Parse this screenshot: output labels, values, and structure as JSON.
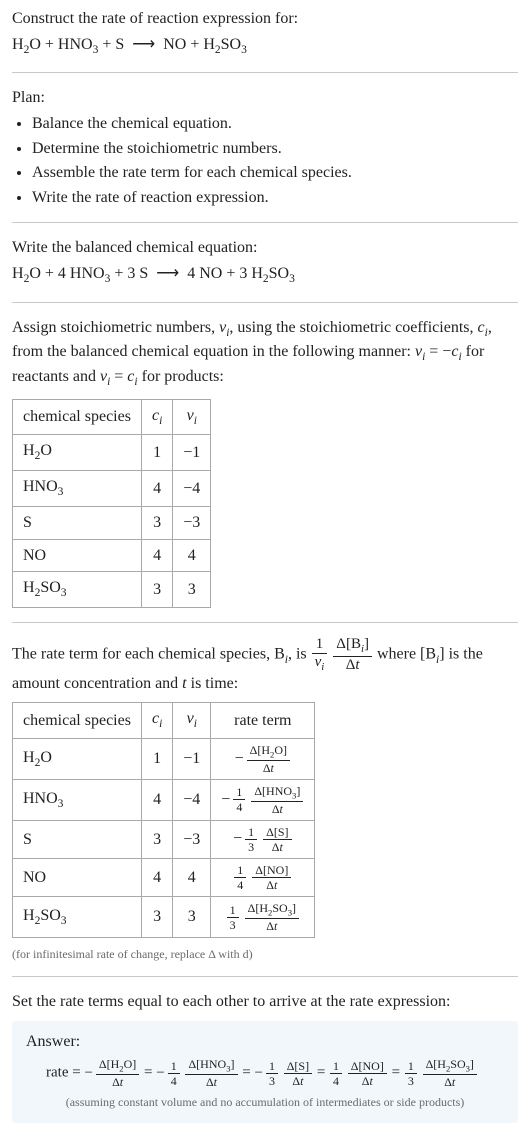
{
  "intro": {
    "prompt": "Construct the rate of reaction expression for:",
    "equation_parts": {
      "lhs1": "H",
      "lhs1_sub": "2",
      "lhs1b": "O + HNO",
      "lhs2_sub": "3",
      "mid": " + S  ",
      "arrow": "⟶",
      "rhs": "  NO + H",
      "rhs_sub": "2",
      "rhs2": "SO",
      "rhs2_sub": "3"
    }
  },
  "plan": {
    "title": "Plan:",
    "items": [
      "Balance the chemical equation.",
      "Determine the stoichiometric numbers.",
      "Assemble the rate term for each chemical species.",
      "Write the rate of reaction expression."
    ]
  },
  "balanced": {
    "title": "Write the balanced chemical equation:",
    "eq": {
      "a": "H",
      "a2": "2",
      "b": "O + 4 HNO",
      "b2": "3",
      "c": " + 3 S  ",
      "arrow": "⟶",
      "d": "  4 NO + 3 H",
      "d2": "2",
      "e": "SO",
      "e2": "3"
    }
  },
  "stoich_text": {
    "line1a": "Assign stoichiometric numbers, ",
    "line1b": ", using the stoichiometric coefficients, ",
    "line1c": ", from the balanced chemical equation in the following manner: ",
    "line1d": " for reactants and ",
    "line1e": " for products:",
    "nu": "ν",
    "nu_i": "i",
    "c": "c",
    "c_i": "i",
    "eq1": " = −",
    "eq2": " = "
  },
  "table1": {
    "headers": {
      "species": "chemical species",
      "c": "c",
      "ci": "i",
      "nu": "ν",
      "nui": "i"
    },
    "rows": [
      {
        "sp_a": "H",
        "sp_sub": "2",
        "sp_b": "O",
        "c": "1",
        "nu": "−1"
      },
      {
        "sp_a": "HNO",
        "sp_sub": "3",
        "sp_b": "",
        "c": "4",
        "nu": "−4"
      },
      {
        "sp_a": "S",
        "sp_sub": "",
        "sp_b": "",
        "c": "3",
        "nu": "−3"
      },
      {
        "sp_a": "NO",
        "sp_sub": "",
        "sp_b": "",
        "c": "4",
        "nu": "4"
      },
      {
        "sp_a": "H",
        "sp_sub": "2",
        "sp_b": "SO",
        "sp_sub2": "3",
        "c": "3",
        "nu": "3"
      }
    ]
  },
  "rateterm_text": {
    "a": "The rate term for each chemical species, B",
    "ai": "i",
    "b": ", is ",
    "where": " where [B",
    "wherei": "i",
    "where2": "] is the amount concentration and ",
    "tvar": "t",
    "where3": " is time:",
    "frac1num": "1",
    "frac1den_nu": "ν",
    "frac1den_i": "i",
    "frac2numA": "Δ[B",
    "frac2numI": "i",
    "frac2numB": "]",
    "frac2den": "Δt"
  },
  "table2": {
    "headers": {
      "species": "chemical species",
      "c": "c",
      "ci": "i",
      "nu": "ν",
      "nui": "i",
      "rate": "rate term"
    },
    "rows": [
      {
        "sp": "H2O",
        "c": "1",
        "nu": "−1",
        "neg": true,
        "coef_num": "",
        "coef_den": "",
        "dnum": "Δ[H2O]",
        "dden": "Δt"
      },
      {
        "sp": "HNO3",
        "c": "4",
        "nu": "−4",
        "neg": true,
        "coef_num": "1",
        "coef_den": "4",
        "dnum": "Δ[HNO3]",
        "dden": "Δt"
      },
      {
        "sp": "S",
        "c": "3",
        "nu": "−3",
        "neg": true,
        "coef_num": "1",
        "coef_den": "3",
        "dnum": "Δ[S]",
        "dden": "Δt"
      },
      {
        "sp": "NO",
        "c": "4",
        "nu": "4",
        "neg": false,
        "coef_num": "1",
        "coef_den": "4",
        "dnum": "Δ[NO]",
        "dden": "Δt"
      },
      {
        "sp": "H2SO3",
        "c": "3",
        "nu": "3",
        "neg": false,
        "coef_num": "1",
        "coef_den": "3",
        "dnum": "Δ[H2SO3]",
        "dden": "Δt"
      }
    ],
    "footnote": "(for infinitesimal rate of change, replace Δ with d)"
  },
  "conclusion": {
    "line": "Set the rate terms equal to each other to arrive at the rate expression:"
  },
  "answer": {
    "label": "Answer:",
    "prefix": "rate = ",
    "terms": [
      {
        "neg": true,
        "cn": "",
        "cd": "",
        "dn": "Δ[H2O]",
        "dd": "Δt"
      },
      {
        "neg": true,
        "cn": "1",
        "cd": "4",
        "dn": "Δ[HNO3]",
        "dd": "Δt"
      },
      {
        "neg": true,
        "cn": "1",
        "cd": "3",
        "dn": "Δ[S]",
        "dd": "Δt"
      },
      {
        "neg": false,
        "cn": "1",
        "cd": "4",
        "dn": "Δ[NO]",
        "dd": "Δt"
      },
      {
        "neg": false,
        "cn": "1",
        "cd": "3",
        "dn": "Δ[H2SO3]",
        "dd": "Δt"
      }
    ],
    "eq": " = ",
    "caption": "(assuming constant volume and no accumulation of intermediates or side products)"
  },
  "style": {
    "hr_color": "#c8c8c8",
    "answer_bg": "#f2f7fb",
    "text_color": "#222222",
    "small_color": "#6b6b6b"
  }
}
